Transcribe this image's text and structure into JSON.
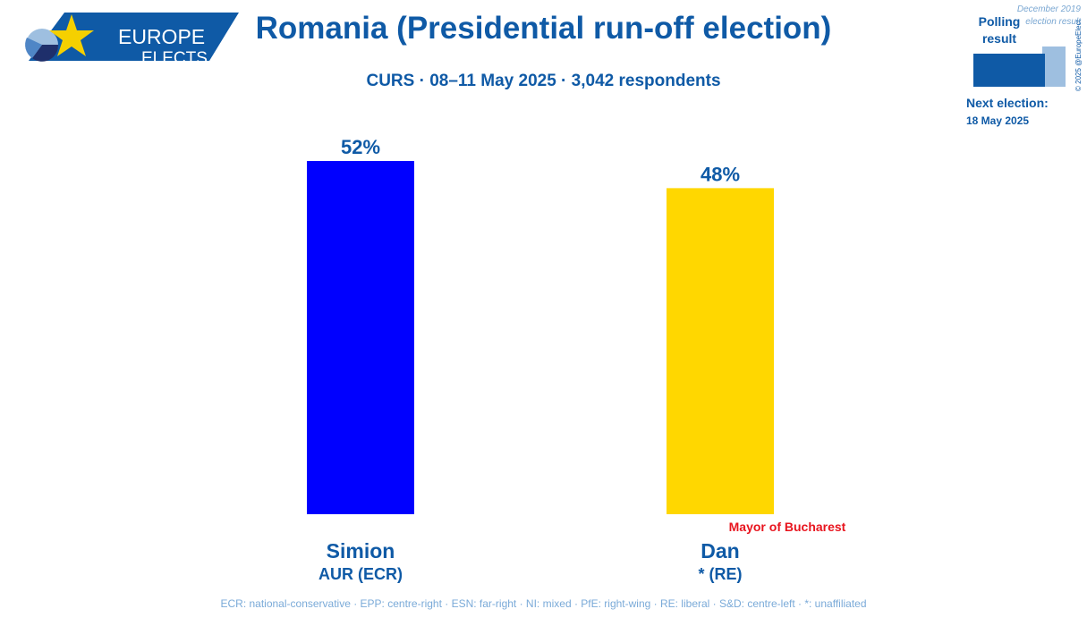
{
  "header": {
    "logo_line1": "EUROPE",
    "logo_line2": "ELECTS",
    "title": "Romania (Presidential run-off election)",
    "subtitle": "CURS · 08–11 May 2025 · 3,042 respondents"
  },
  "legend": {
    "polling_label": "Polling result",
    "previous_label": "December 2019 election result",
    "copyright": "© 2025 @EuropeElects",
    "next_election_label": "Next election:",
    "next_election_date": "18 May 2025"
  },
  "footer": {
    "text": "ECR: national-conservative · EPP: centre-right · ESN: far-right · NI: mixed · PfE: right-wing · RE: liberal · S&D: centre-left · *: unaffiliated"
  },
  "colors": {
    "brand": "#0f5aa6",
    "brand_light": "#9ebfe0",
    "note_red": "#e8141e"
  },
  "chart_data": {
    "type": "bar",
    "categories": [
      "Simion",
      "Dan"
    ],
    "category_sublabels": [
      "AUR (ECR)",
      "* (RE)"
    ],
    "values": [
      52,
      48
    ],
    "value_labels": [
      "52%",
      "48%"
    ],
    "colors": [
      "#0000ff",
      "#ffd700"
    ],
    "annotations": [
      null,
      "Mayor of Bucharest"
    ],
    "ylim": [
      0,
      52
    ]
  }
}
